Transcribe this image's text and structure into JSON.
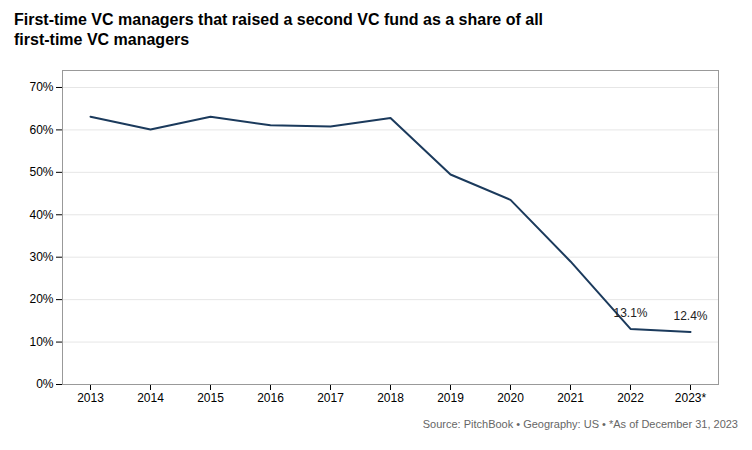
{
  "chart_data": {
    "type": "line",
    "title": "First-time VC managers that raised a second VC fund as a share of all\nfirst-time VC managers",
    "caption": "Source: PitchBook  •  Geography: US  •  *As of December 31, 2023",
    "categories": [
      "2013",
      "2014",
      "2015",
      "2016",
      "2017",
      "2018",
      "2019",
      "2020",
      "2021",
      "2022",
      "2023*"
    ],
    "values": [
      0.631,
      0.601,
      0.631,
      0.611,
      0.608,
      0.628,
      0.495,
      0.435,
      0.29,
      0.131,
      0.124
    ],
    "color": "#1b3a5c",
    "ylim": [
      0,
      0.74
    ],
    "yticks": [
      {
        "value": 0.0,
        "label": "0%"
      },
      {
        "value": 0.1,
        "label": "10%"
      },
      {
        "value": 0.2,
        "label": "20%"
      },
      {
        "value": 0.3,
        "label": "30%"
      },
      {
        "value": 0.4,
        "label": "40%"
      },
      {
        "value": 0.5,
        "label": "50%"
      },
      {
        "value": 0.6,
        "label": "60%"
      },
      {
        "value": 0.7,
        "label": "70%"
      }
    ],
    "grid": true,
    "annotations": [
      {
        "label": "13.1%",
        "x": "2022",
        "y": 0.131
      },
      {
        "label": "12.4%",
        "x": "2023*",
        "y": 0.124
      }
    ]
  }
}
